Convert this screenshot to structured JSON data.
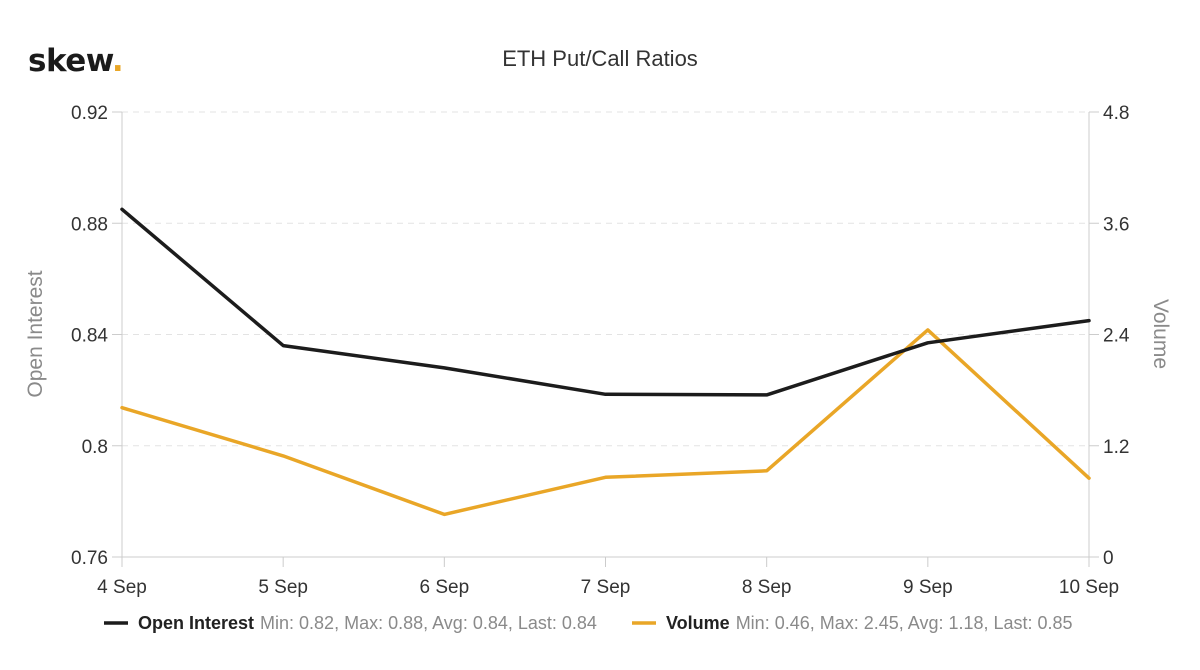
{
  "brand": {
    "name": "skew",
    "dot": ".",
    "dot_color": "#e9a627"
  },
  "chart_data": {
    "type": "line",
    "title": "ETH Put/Call Ratios",
    "categories": [
      "4 Sep",
      "5 Sep",
      "6 Sep",
      "7 Sep",
      "8 Sep",
      "9 Sep",
      "10 Sep"
    ],
    "y_left": {
      "label": "Open Interest",
      "ticks": [
        "0.92",
        "0.88",
        "0.84",
        "0.8",
        "0.76"
      ],
      "range": [
        0.76,
        0.92
      ]
    },
    "y_right": {
      "label": "Volume",
      "ticks": [
        "4.8",
        "3.6",
        "2.4",
        "1.2",
        "0"
      ],
      "range": [
        0,
        4.8
      ]
    },
    "grid": true,
    "legend_position": "bottom",
    "series": [
      {
        "name": "Open Interest",
        "axis": "left",
        "color": "#1c1c1c",
        "values": [
          0.885,
          0.836,
          0.828,
          0.8185,
          0.8183,
          0.837,
          0.845
        ],
        "stats": "Min: 0.82, Max: 0.88, Avg: 0.84, Last: 0.84"
      },
      {
        "name": "Volume",
        "axis": "right",
        "color": "#e9a627",
        "values": [
          1.61,
          1.09,
          0.46,
          0.86,
          0.93,
          2.45,
          0.85
        ],
        "stats": "Min: 0.46, Max: 2.45, Avg: 1.18, Last: 0.85"
      }
    ]
  }
}
